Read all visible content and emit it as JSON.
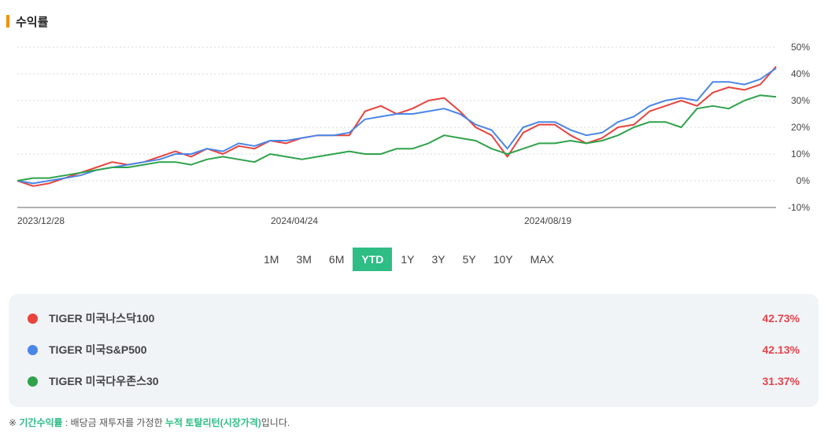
{
  "header": {
    "title": "수익률"
  },
  "chart_data": {
    "type": "line",
    "x_labels": [
      "2023/12/28",
      "2024/04/24",
      "2024/08/19"
    ],
    "y_ticks": [
      "50%",
      "40%",
      "30%",
      "20%",
      "10%",
      "0%",
      "-10%"
    ],
    "ylim": [
      -10,
      50
    ],
    "grid": true,
    "series": [
      {
        "name": "TIGER 미국나스닥100",
        "color": "#e8433d",
        "values": [
          0,
          -2,
          -1,
          1,
          3,
          5,
          7,
          6,
          7,
          9,
          11,
          9,
          12,
          10,
          13,
          12,
          15,
          14,
          16,
          17,
          17,
          17,
          26,
          28,
          25,
          27,
          30,
          31,
          26,
          20,
          17,
          9,
          18,
          21,
          21,
          17,
          14,
          16,
          20,
          21,
          26,
          28,
          30,
          28,
          33,
          35,
          34,
          36,
          42.73
        ]
      },
      {
        "name": "TIGER 미국S&P500",
        "color": "#4a86e8",
        "values": [
          0,
          -1,
          0,
          1,
          2,
          4,
          5,
          6,
          7,
          8,
          10,
          10,
          12,
          11,
          14,
          13,
          15,
          15,
          16,
          17,
          17,
          18,
          23,
          24,
          25,
          25,
          26,
          27,
          25,
          21,
          19,
          12,
          20,
          22,
          22,
          19,
          17,
          18,
          22,
          24,
          28,
          30,
          31,
          30,
          37,
          37,
          36,
          38,
          42.13
        ]
      },
      {
        "name": "TIGER 미국다우존스30",
        "color": "#2fa24b",
        "values": [
          0,
          1,
          1,
          2,
          3,
          4,
          5,
          5,
          6,
          7,
          7,
          6,
          8,
          9,
          8,
          7,
          10,
          9,
          8,
          9,
          10,
          11,
          10,
          10,
          12,
          12,
          14,
          17,
          16,
          15,
          12,
          10,
          12,
          14,
          14,
          15,
          14,
          15,
          17,
          20,
          22,
          22,
          20,
          27,
          28,
          27,
          30,
          32,
          31.37
        ]
      }
    ]
  },
  "periods": [
    "1M",
    "3M",
    "6M",
    "YTD",
    "1Y",
    "3Y",
    "5Y",
    "10Y",
    "MAX"
  ],
  "active_period": "YTD",
  "legend": [
    {
      "name": "TIGER 미국나스닥100",
      "return": "42.73%",
      "color": "#e8433d"
    },
    {
      "name": "TIGER 미국S&P500",
      "return": "42.13%",
      "color": "#4a86e8"
    },
    {
      "name": "TIGER 미국다우존스30",
      "return": "31.37%",
      "color": "#2fa24b"
    }
  ],
  "footnote": {
    "prefix": "※ ",
    "term": "기간수익률",
    "middle": " : 배당금 재투자를 가정한 ",
    "highlight": "누적 토탈리턴(시장가격)",
    "suffix": "입니다."
  }
}
